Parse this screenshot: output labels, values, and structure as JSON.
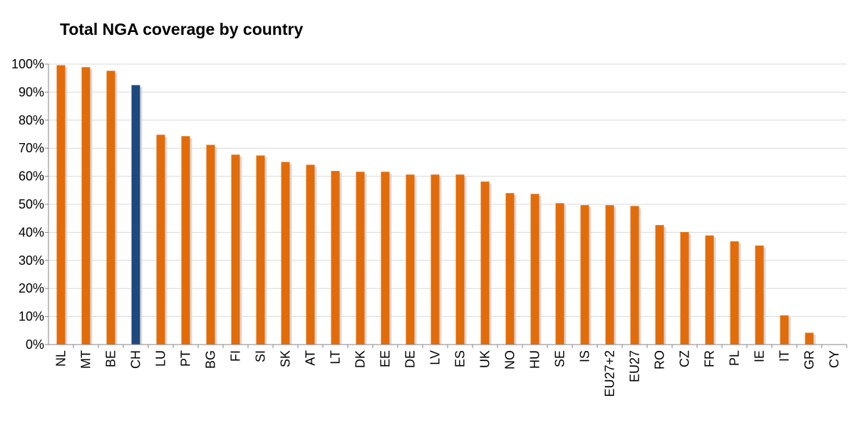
{
  "chart_data": {
    "type": "bar",
    "title": "Total NGA coverage by country",
    "xlabel": "",
    "ylabel": "",
    "ylim": [
      0,
      100
    ],
    "y_tick_labels": [
      "0%",
      "10%",
      "20%",
      "30%",
      "40%",
      "50%",
      "60%",
      "70%",
      "80%",
      "90%",
      "100%"
    ],
    "y_ticks": [
      0,
      10,
      20,
      30,
      40,
      50,
      60,
      70,
      80,
      90,
      100
    ],
    "grid": true,
    "categories": [
      "NL",
      "MT",
      "BE",
      "CH",
      "LU",
      "PT",
      "BG",
      "FI",
      "SI",
      "SK",
      "AT",
      "LT",
      "DK",
      "EE",
      "DE",
      "LV",
      "ES",
      "UK",
      "NO",
      "HU",
      "SE",
      "IS",
      "EU27+2",
      "EU27",
      "RO",
      "CZ",
      "FR",
      "PL",
      "IE",
      "IT",
      "GR",
      "CY"
    ],
    "values": [
      99.6,
      98.9,
      97.6,
      92.5,
      74.8,
      74.3,
      71.2,
      67.7,
      67.4,
      65.1,
      64.1,
      61.9,
      61.6,
      61.6,
      60.6,
      60.6,
      60.6,
      58.1,
      54.0,
      53.7,
      50.4,
      49.7,
      49.7,
      49.4,
      42.6,
      40.1,
      38.9,
      36.8,
      35.3,
      10.4,
      4.2,
      0.0
    ],
    "colors": {
      "default": "#E36C0A",
      "highlight": "#1F497D",
      "highlight_category": "CH",
      "shadow": "#D9D9D9",
      "grid": "#D9D9D9"
    }
  }
}
